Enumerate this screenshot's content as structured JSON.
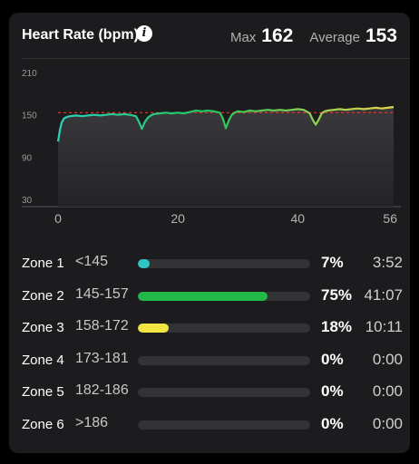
{
  "card": {
    "title": "Heart Rate (bpm)",
    "max_label": "Max",
    "max_value": "162",
    "avg_label": "Average",
    "avg_value": "153"
  },
  "chart_data": {
    "type": "line",
    "ylim": [
      30,
      210
    ],
    "xlim": [
      0,
      56
    ],
    "yticks": [
      210,
      150,
      90,
      30
    ],
    "xticks": [
      0,
      20,
      40,
      56
    ],
    "average_reference": 153,
    "series": [
      {
        "x": [
          0,
          0.3,
          0.6,
          1,
          1.5,
          2,
          3,
          4,
          5,
          6,
          7,
          8,
          9,
          10,
          11,
          12,
          13,
          13.5,
          14,
          14.5,
          15,
          15.5,
          16,
          17,
          18,
          19,
          20,
          21,
          22,
          23,
          24,
          25,
          26,
          27,
          27.5,
          28,
          28.5,
          29,
          29.5,
          30,
          31,
          32,
          33,
          34,
          35,
          36,
          37,
          38,
          39,
          40,
          41,
          42,
          42.5,
          43,
          43.5,
          44,
          44.5,
          45,
          46,
          47,
          48,
          49,
          50,
          51,
          52,
          53,
          54,
          55,
          56
        ],
        "y": [
          112,
          128,
          139,
          145,
          147,
          148,
          149,
          148,
          149,
          150,
          149,
          150,
          151,
          150,
          151,
          150,
          148,
          140,
          130,
          140,
          146,
          149,
          151,
          152,
          153,
          152,
          153,
          152,
          154,
          156,
          155,
          156,
          155,
          153,
          145,
          131,
          142,
          150,
          153,
          155,
          154,
          156,
          155,
          156,
          157,
          156,
          157,
          156,
          157,
          158,
          157,
          152,
          143,
          136,
          143,
          152,
          155,
          156,
          157,
          158,
          157,
          158,
          159,
          158,
          159,
          160,
          159,
          160,
          161
        ]
      }
    ],
    "gradient_colors": [
      "#2ed1b8",
      "#22c55e",
      "#e8d74a"
    ]
  },
  "zones": [
    {
      "name": "Zone 1",
      "range": "<145",
      "fraction": 0.07,
      "pct": "7%",
      "time": "3:52",
      "color": "#2ec5c6"
    },
    {
      "name": "Zone 2",
      "range": "145-157",
      "fraction": 0.75,
      "pct": "75%",
      "time": "41:07",
      "color": "#22b84a"
    },
    {
      "name": "Zone 3",
      "range": "158-172",
      "fraction": 0.18,
      "pct": "18%",
      "time": "10:11",
      "color": "#f0e542"
    },
    {
      "name": "Zone 4",
      "range": "173-181",
      "fraction": 0,
      "pct": "0%",
      "time": "0:00",
      "color": "#ff8a2a"
    },
    {
      "name": "Zone 5",
      "range": "182-186",
      "fraction": 0,
      "pct": "0%",
      "time": "0:00",
      "color": "#ff4d3a"
    },
    {
      "name": "Zone 6",
      "range": ">186",
      "fraction": 0,
      "pct": "0%",
      "time": "0:00",
      "color": "#d6336c"
    }
  ]
}
